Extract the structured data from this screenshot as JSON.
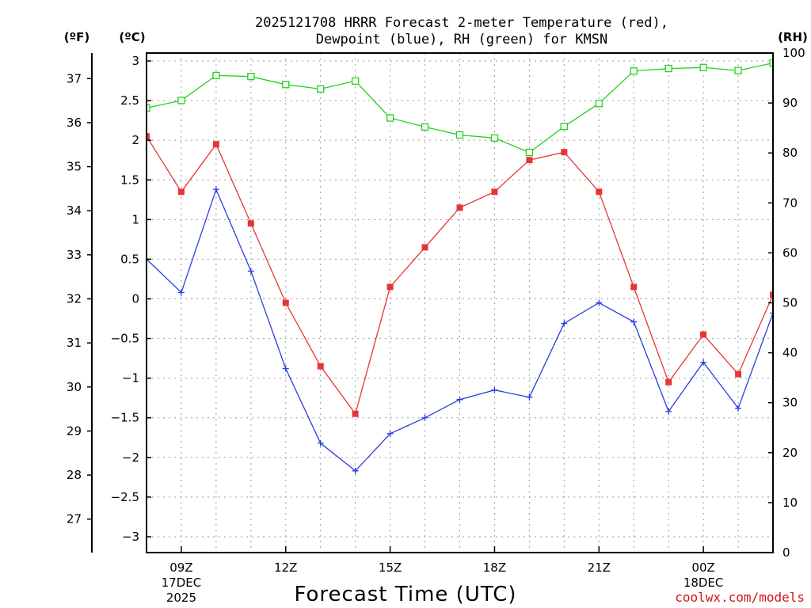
{
  "chart_data": {
    "type": "line",
    "title_line1": "2025121708 HRRR Forecast 2-meter Temperature (red),",
    "title_line2": "Dewpoint (blue), RH (green) for KMSN",
    "unit_f": "(ºF)",
    "unit_c": "(ºC)",
    "unit_rh": "(RH)",
    "xlabel": "Forecast Time (UTC)",
    "credit": "coolwx.com/models",
    "celsius_range": [
      -3.2,
      3.1
    ],
    "rh_range": [
      0,
      100
    ],
    "celsius_ticks": [
      "3",
      "2.5",
      "2",
      "1.5",
      "1",
      "0.5",
      "0",
      "−0.5",
      "−1",
      "−1.5",
      "−2",
      "−2.5",
      "−3"
    ],
    "celsius_tick_values": [
      3,
      2.5,
      2,
      1.5,
      1,
      0.5,
      0,
      -0.5,
      -1,
      -1.5,
      -2,
      -2.5,
      -3
    ],
    "fahrenheit_ticks": [
      "37",
      "36",
      "35",
      "34",
      "33",
      "32",
      "31",
      "30",
      "29",
      "28",
      "27"
    ],
    "fahrenheit_tick_values": [
      37,
      36,
      35,
      34,
      33,
      32,
      31,
      30,
      29,
      28,
      27
    ],
    "rh_ticks": [
      "100",
      "90",
      "80",
      "70",
      "60",
      "50",
      "40",
      "30",
      "20",
      "10",
      "0"
    ],
    "rh_tick_values": [
      100,
      90,
      80,
      70,
      60,
      50,
      40,
      30,
      20,
      10,
      0
    ],
    "hours": [
      8,
      9,
      10,
      11,
      12,
      13,
      14,
      15,
      16,
      17,
      18,
      19,
      20,
      21,
      22,
      23,
      24,
      25,
      26
    ],
    "x_ticks": [
      {
        "hour": 9,
        "line1": "09Z",
        "line2": "17DEC",
        "line3": "2025"
      },
      {
        "hour": 12,
        "line1": "12Z",
        "line2": "",
        "line3": ""
      },
      {
        "hour": 15,
        "line1": "15Z",
        "line2": "",
        "line3": ""
      },
      {
        "hour": 18,
        "line1": "18Z",
        "line2": "",
        "line3": ""
      },
      {
        "hour": 21,
        "line1": "21Z",
        "line2": "",
        "line3": ""
      },
      {
        "hour": 24,
        "line1": "00Z",
        "line2": "18DEC",
        "line3": ""
      }
    ],
    "series": [
      {
        "name": "Temperature",
        "unit": "C",
        "color": "#e83434",
        "marker": "filled-square",
        "values": [
          2.05,
          1.35,
          1.95,
          0.95,
          -0.05,
          -0.85,
          -1.45,
          0.15,
          0.65,
          1.15,
          1.35,
          1.75,
          1.85,
          1.35,
          0.15,
          -1.05,
          -0.45,
          -0.95,
          0.05
        ]
      },
      {
        "name": "Dewpoint",
        "unit": "C",
        "color": "#2a3de0",
        "marker": "plus",
        "values": [
          0.5,
          0.08,
          1.38,
          0.35,
          -0.88,
          -1.82,
          -2.17,
          -1.7,
          -1.5,
          -1.27,
          -1.15,
          -1.24,
          -0.31,
          -0.05,
          -0.29,
          -1.42,
          -0.8,
          -1.38,
          -0.18
        ]
      },
      {
        "name": "RH",
        "unit": "%",
        "color": "#22d11f",
        "marker": "open-square",
        "values": [
          89,
          90.5,
          95.5,
          95.3,
          93.7,
          92.8,
          94.4,
          87,
          85.2,
          83.6,
          83,
          80.1,
          85.3,
          89.9,
          96.4,
          96.9,
          97.1,
          96.5,
          98
        ]
      }
    ]
  }
}
